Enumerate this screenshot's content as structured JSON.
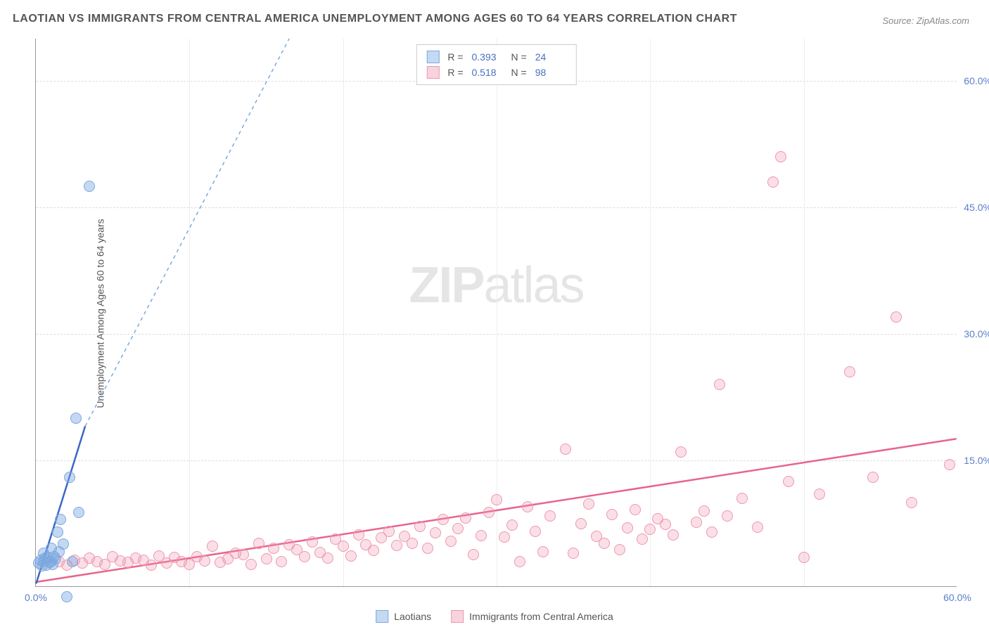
{
  "title": "LAOTIAN VS IMMIGRANTS FROM CENTRAL AMERICA UNEMPLOYMENT AMONG AGES 60 TO 64 YEARS CORRELATION CHART",
  "source": "Source: ZipAtlas.com",
  "y_axis_label": "Unemployment Among Ages 60 to 64 years",
  "watermark_a": "ZIP",
  "watermark_b": "atlas",
  "chart": {
    "type": "scatter",
    "xlim": [
      0,
      60
    ],
    "ylim": [
      0,
      65
    ],
    "x_ticks": [
      0.0,
      60.0
    ],
    "x_tick_labels": [
      "0.0%",
      "60.0%"
    ],
    "y_ticks": [
      15.0,
      30.0,
      45.0,
      60.0
    ],
    "y_tick_labels": [
      "15.0%",
      "30.0%",
      "45.0%",
      "60.0%"
    ],
    "v_gridlines": [
      10,
      20,
      30,
      40,
      50
    ],
    "background_color": "#ffffff",
    "grid_color": "#dddddd",
    "axis_color": "#999999",
    "tick_label_color": "#5b7fc7",
    "tick_fontsize": 14,
    "title_fontsize": 16,
    "title_color": "#555555",
    "marker_size": 16,
    "marker_opacity_blue": 0.45,
    "marker_opacity_pink": 0.3
  },
  "stats": {
    "series1": {
      "R_label": "R =",
      "R": "0.393",
      "N_label": "N =",
      "N": "24"
    },
    "series2": {
      "R_label": "R =",
      "R": "0.518",
      "N_label": "N =",
      "N": "98"
    }
  },
  "legend": {
    "series1": "Laotians",
    "series2": "Immigrants from Central America"
  },
  "series": {
    "laotians": {
      "color": "#7da8df",
      "fill": "#c5daf2",
      "trend": {
        "x1": 0,
        "y1": 0.3,
        "x2": 3.2,
        "y2": 19,
        "dash_extend_x": 16.5,
        "dash_extend_y": 65
      },
      "points": [
        [
          0.2,
          2.8
        ],
        [
          0.3,
          3.2
        ],
        [
          0.5,
          3.0
        ],
        [
          0.6,
          3.4
        ],
        [
          0.7,
          2.6
        ],
        [
          0.8,
          3.5
        ],
        [
          0.9,
          2.9
        ],
        [
          1.0,
          3.1
        ],
        [
          1.1,
          2.7
        ],
        [
          1.2,
          3.6
        ],
        [
          0.4,
          2.5
        ],
        [
          1.3,
          3.3
        ],
        [
          1.5,
          4.2
        ],
        [
          1.8,
          5.1
        ],
        [
          2.2,
          13.0
        ],
        [
          2.4,
          3.0
        ],
        [
          1.0,
          4.6
        ],
        [
          1.6,
          8.0
        ],
        [
          2.8,
          8.8
        ],
        [
          1.4,
          6.5
        ],
        [
          2.6,
          20.0
        ],
        [
          2.0,
          -1.2
        ],
        [
          3.5,
          47.5
        ],
        [
          0.5,
          4.0
        ]
      ]
    },
    "central_america": {
      "color": "#f096af",
      "fill": "#f7d3de",
      "trend": {
        "x1": 0,
        "y1": 0.5,
        "x2": 60,
        "y2": 17.5
      },
      "points": [
        [
          1.5,
          3.0
        ],
        [
          2.0,
          2.6
        ],
        [
          2.5,
          3.2
        ],
        [
          3.0,
          2.8
        ],
        [
          3.5,
          3.4
        ],
        [
          4.0,
          3.0
        ],
        [
          4.5,
          2.7
        ],
        [
          5.0,
          3.6
        ],
        [
          5.5,
          3.1
        ],
        [
          6.0,
          2.9
        ],
        [
          6.5,
          3.4
        ],
        [
          7.0,
          3.2
        ],
        [
          7.5,
          2.6
        ],
        [
          8.0,
          3.7
        ],
        [
          8.5,
          2.8
        ],
        [
          9.0,
          3.5
        ],
        [
          9.5,
          3.0
        ],
        [
          10.0,
          2.7
        ],
        [
          10.5,
          3.6
        ],
        [
          11.0,
          3.1
        ],
        [
          11.5,
          4.8
        ],
        [
          12.0,
          2.9
        ],
        [
          12.5,
          3.3
        ],
        [
          13.0,
          4.0
        ],
        [
          13.5,
          3.8
        ],
        [
          14.0,
          2.7
        ],
        [
          14.5,
          5.2
        ],
        [
          15.0,
          3.3
        ],
        [
          15.5,
          4.6
        ],
        [
          16.0,
          3.0
        ],
        [
          16.5,
          5.0
        ],
        [
          17.0,
          4.4
        ],
        [
          17.5,
          3.6
        ],
        [
          18.0,
          5.3
        ],
        [
          18.5,
          4.1
        ],
        [
          19.0,
          3.4
        ],
        [
          19.5,
          5.7
        ],
        [
          20.0,
          4.8
        ],
        [
          20.5,
          3.7
        ],
        [
          21.0,
          6.2
        ],
        [
          21.5,
          5.0
        ],
        [
          22.0,
          4.3
        ],
        [
          22.5,
          5.8
        ],
        [
          23.0,
          6.6
        ],
        [
          23.5,
          4.9
        ],
        [
          24.0,
          6.0
        ],
        [
          24.5,
          5.2
        ],
        [
          25.0,
          7.2
        ],
        [
          25.5,
          4.6
        ],
        [
          26.0,
          6.4
        ],
        [
          26.5,
          8.0
        ],
        [
          27.0,
          5.4
        ],
        [
          27.5,
          6.9
        ],
        [
          28.0,
          8.2
        ],
        [
          28.5,
          3.8
        ],
        [
          29.0,
          6.1
        ],
        [
          29.5,
          8.8
        ],
        [
          30.0,
          10.3
        ],
        [
          30.5,
          5.9
        ],
        [
          31.0,
          7.3
        ],
        [
          31.5,
          3.0
        ],
        [
          32.0,
          9.5
        ],
        [
          32.5,
          6.6
        ],
        [
          33.0,
          4.2
        ],
        [
          33.5,
          8.4
        ],
        [
          34.5,
          16.3
        ],
        [
          35.0,
          4.0
        ],
        [
          35.5,
          7.5
        ],
        [
          36.0,
          9.8
        ],
        [
          36.5,
          6.0
        ],
        [
          37.0,
          5.2
        ],
        [
          37.5,
          8.6
        ],
        [
          38.0,
          4.4
        ],
        [
          38.5,
          7.0
        ],
        [
          39.0,
          9.2
        ],
        [
          39.5,
          5.7
        ],
        [
          40.0,
          6.8
        ],
        [
          40.5,
          8.1
        ],
        [
          41.0,
          7.4
        ],
        [
          41.5,
          6.2
        ],
        [
          42.0,
          16.0
        ],
        [
          43.0,
          7.7
        ],
        [
          43.5,
          9.0
        ],
        [
          44.0,
          6.5
        ],
        [
          44.5,
          24.0
        ],
        [
          45.0,
          8.4
        ],
        [
          46.0,
          10.5
        ],
        [
          47.0,
          7.1
        ],
        [
          48.0,
          48.0
        ],
        [
          48.5,
          51.0
        ],
        [
          49.0,
          12.5
        ],
        [
          50.0,
          3.5
        ],
        [
          51.0,
          11.0
        ],
        [
          53.0,
          25.5
        ],
        [
          54.5,
          13.0
        ],
        [
          56.0,
          32.0
        ],
        [
          57.0,
          10.0
        ],
        [
          59.5,
          14.5
        ]
      ]
    }
  }
}
